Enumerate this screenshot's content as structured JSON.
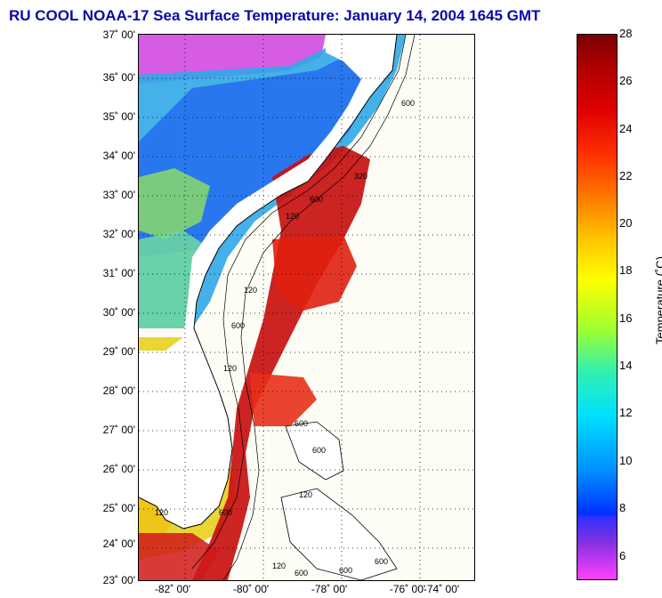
{
  "title": "RU COOL  NOAA-17  Sea Surface Temperature:  January 14, 2004 1645 GMT",
  "lat_labels": [
    "37˚ 00'",
    "36˚ 00'",
    "35˚ 00'",
    "34˚ 00'",
    "33˚ 00'",
    "32˚ 00'",
    "31˚ 00'",
    "30˚ 00'",
    "29˚ 00'",
    "28˚ 00'",
    "27˚ 00'",
    "26˚ 00'",
    "25˚ 00'",
    "24˚ 00'",
    "23˚ 00'"
  ],
  "lon_labels": [
    "-82˚ 00'",
    "-80˚ 00'",
    "-78˚ 00'",
    "-76˚ 00'",
    "-74˚ 00'"
  ],
  "contour_labels": [
    "600",
    "320",
    "120",
    "600",
    "120",
    "120",
    "600",
    "600",
    "120",
    "600",
    "120",
    "600",
    "120",
    "600",
    "600",
    "600"
  ],
  "colorbar": {
    "label": "Temperature (˚C)",
    "ticks": [
      "28",
      "26",
      "24",
      "22",
      "20",
      "18",
      "16",
      "14",
      "12",
      "10",
      "8",
      "6"
    ],
    "min": 5,
    "max": 28
  },
  "colors": {
    "title": "#0a0aa8",
    "land": "#ffffff",
    "ocean_missing": "#fdfdf6",
    "gulf_stream": "#c81010"
  }
}
